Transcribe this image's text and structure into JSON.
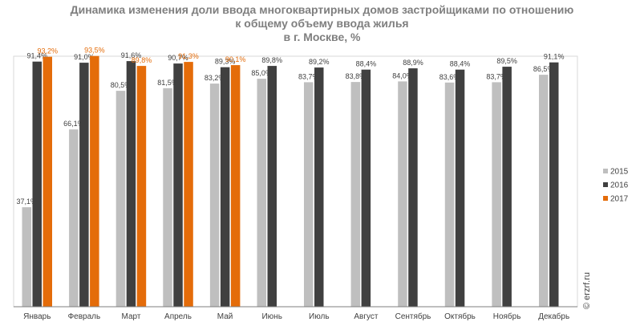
{
  "title_lines": [
    "Динамика изменения доли ввода многоквартирных домов застройщиками по отношению",
    "к общему объему ввода жилья",
    "в г. Москве, %"
  ],
  "watermark": "© erzrf.ru",
  "colors": {
    "2015": "#bfbfbf",
    "2016": "#404040",
    "2017": "#e46c0a",
    "label_2017": "#e46c0a",
    "label_default": "#404040",
    "axis": "#7f7f7f",
    "plot_border": "#d9d9d9"
  },
  "chart_data": {
    "type": "bar",
    "title": "Динамика изменения доли ввода многоквартирных домов застройщиками по отношению к общему объему ввода жилья в г. Москве, %",
    "categories": [
      "Январь",
      "Февраль",
      "Март",
      "Апрель",
      "Май",
      "Июнь",
      "Июль",
      "Август",
      "Сентябрь",
      "Октябрь",
      "Ноябрь",
      "Декабрь"
    ],
    "series": [
      {
        "name": "2015",
        "values": [
          37.1,
          66.1,
          80.5,
          81.5,
          83.2,
          85.0,
          83.7,
          83.8,
          84.0,
          83.6,
          83.7,
          86.5
        ],
        "labels": [
          "37,1%",
          "66,1%",
          "80,5%",
          "81,5%",
          "83,2%",
          "85,0%",
          "83,7%",
          "83,8%",
          "84,0%",
          "83,6%",
          "83,7%",
          "86,5%"
        ]
      },
      {
        "name": "2016",
        "values": [
          91.4,
          91.0,
          91.6,
          90.7,
          89.3,
          89.8,
          89.2,
          88.4,
          88.9,
          88.4,
          89.5,
          91.1
        ],
        "labels": [
          "91,4%",
          "91,0%",
          "91,6%",
          "90,7%",
          "89,3%",
          "89,8%",
          "89,2%",
          "88,4%",
          "88,9%",
          "88,4%",
          "89,5%",
          "91,1%"
        ]
      },
      {
        "name": "2017",
        "values": [
          93.2,
          93.5,
          89.8,
          91.3,
          90.1,
          null,
          null,
          null,
          null,
          null,
          null,
          null
        ],
        "labels": [
          "93,2%",
          "93,5%",
          "89,8%",
          "91,3%",
          "90,1%",
          null,
          null,
          null,
          null,
          null,
          null,
          null
        ]
      }
    ],
    "ylim": [
      0,
      100
    ],
    "grid": false,
    "legend": "right"
  }
}
